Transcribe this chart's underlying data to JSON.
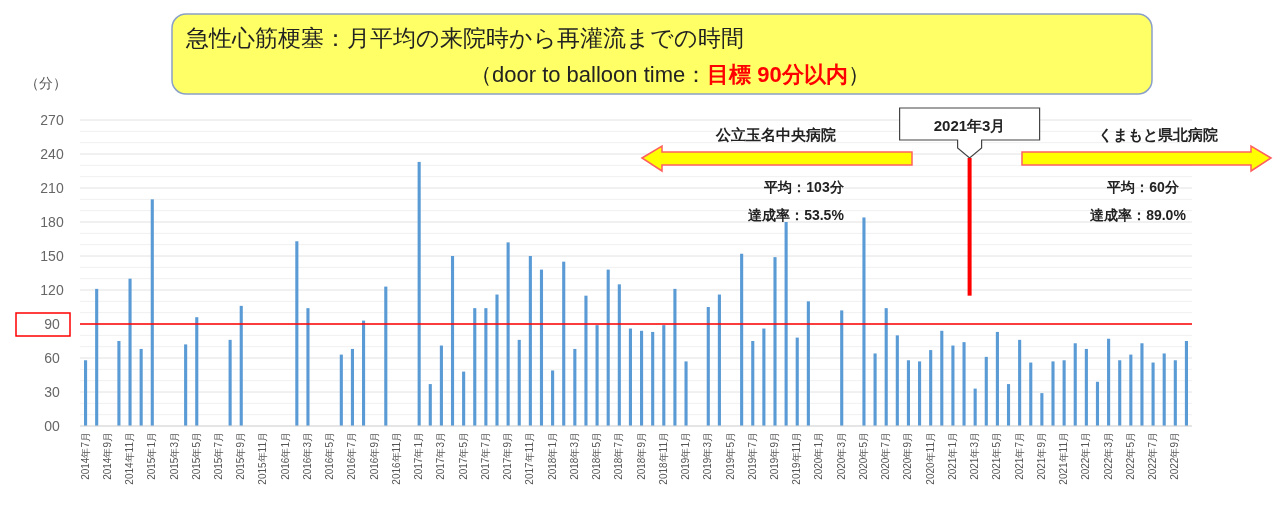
{
  "chart_data": {
    "type": "bar",
    "title": "急性心筋梗塞：月平均の来院時から再灌流までの時間",
    "subtitle": "（door to balloon time：目標 90分以内）",
    "ylabel": "（分）",
    "categories": [
      "2014年7月",
      null,
      "2014年9月",
      null,
      "2014年11月",
      null,
      "2015年1月",
      null,
      "2015年3月",
      null,
      "2015年5月",
      null,
      "2015年7月",
      null,
      "2015年9月",
      null,
      "2015年11月",
      null,
      "2016年1月",
      null,
      "2016年3月",
      null,
      "2016年5月",
      null,
      "2016年7月",
      null,
      "2016年9月",
      null,
      "2016年11月",
      null,
      "2017年1月",
      null,
      "2017年3月",
      null,
      "2017年5月",
      null,
      "2017年7月",
      null,
      "2017年9月",
      null,
      "2017年11月",
      null,
      "2018年1月",
      null,
      "2018年3月",
      null,
      "2018年5月",
      null,
      "2018年7月",
      null,
      "2018年9月",
      null,
      "2018年11月",
      null,
      "2019年1月",
      null,
      "2019年3月",
      null,
      "2019年5月",
      null,
      "2019年7月",
      null,
      "2019年9月",
      null,
      "2019年11月",
      null,
      "2020年1月",
      null,
      "2020年3月",
      null,
      "2020年5月",
      null,
      "2020年7月",
      null,
      "2020年9月",
      null,
      "2020年11月",
      null,
      "2021年1月",
      null,
      "2021年3月",
      null,
      "2021年5月",
      null,
      "2021年7月",
      null,
      "2021年9月",
      null,
      "2021年11月",
      null,
      "2022年1月",
      null,
      "2022年3月",
      null,
      "2022年5月",
      null,
      "2022年7月",
      null,
      "2022年9月",
      null
    ],
    "values": [
      58,
      121,
      null,
      75,
      130,
      68,
      200,
      null,
      null,
      72,
      96,
      null,
      null,
      76,
      106,
      null,
      null,
      null,
      null,
      163,
      104,
      null,
      null,
      63,
      68,
      93,
      null,
      123,
      null,
      null,
      233,
      37,
      71,
      150,
      48,
      104,
      104,
      116,
      162,
      76,
      150,
      138,
      49,
      145,
      68,
      115,
      89,
      138,
      125,
      86,
      84,
      83,
      89,
      121,
      57,
      null,
      105,
      116,
      null,
      152,
      75,
      86,
      149,
      180,
      78,
      110,
      null,
      null,
      102,
      null,
      184,
      64,
      104,
      80,
      58,
      57,
      67,
      84,
      71,
      74,
      33,
      61,
      83,
      37,
      76,
      56,
      29,
      57,
      58,
      73,
      68,
      39,
      77,
      58,
      63,
      73,
      56,
      64,
      58,
      75
    ],
    "color": "#5b9bd5",
    "ylim": [
      0,
      270
    ],
    "yticks": [
      {
        "value": 0,
        "label": "00"
      },
      30,
      60,
      90,
      120,
      150,
      180,
      210,
      240,
      270
    ],
    "grid": "y",
    "ref_lines": [
      {
        "axis": "y",
        "value": 90,
        "color": "#ff0000"
      }
    ],
    "annotations": [
      "公立玉名中央病院",
      "平均：103分",
      "達成率：53.5%",
      "くまもと県北病院",
      "平均：60分",
      "達成率：89.0%",
      "2021年3月"
    ]
  }
}
